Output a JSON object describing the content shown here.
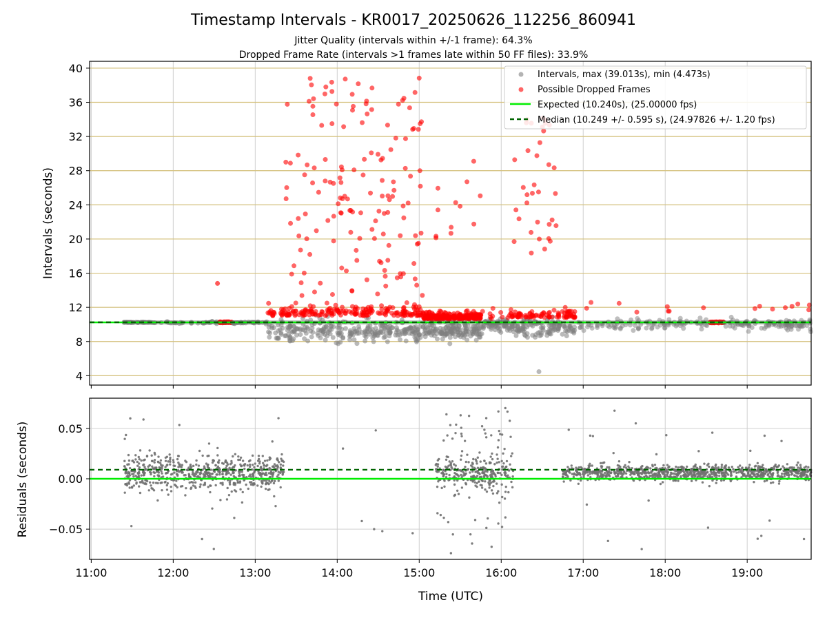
{
  "figure": {
    "title": "Timestamp Intervals - KR0017_20250626_112256_860941",
    "subtitle_1": "Jitter Quality (intervals within +/-1 frame): 64.3%",
    "subtitle_2": "Dropped Frame Rate (intervals >1 frames late within 50 FF files): 33.9%"
  },
  "chart_data": [
    {
      "type": "scatter",
      "panel": "top",
      "ylabel": "Intervals (seconds)",
      "xlabel": "",
      "x_unit": "hours UTC",
      "xlim": [
        10.98,
        19.78
      ],
      "ylim": [
        2.9,
        40.8
      ],
      "yticks": [
        4,
        8,
        12,
        16,
        20,
        24,
        28,
        32,
        36,
        40
      ],
      "ytick_labels": [
        "4",
        "8",
        "12",
        "16",
        "20",
        "24",
        "28",
        "32",
        "36",
        "40"
      ],
      "hlines": [
        4,
        8,
        12,
        16,
        20,
        24,
        28,
        32,
        36,
        40
      ],
      "hline_color": "#d4c07a",
      "grid": true,
      "legend_position": "top-right",
      "legend": [
        "Intervals, max (39.013s), min (4.473s)",
        "Possible Dropped Frames",
        "Expected (10.240s), (25.00000 fps)",
        "Median (10.249 +/- 0.595 s), (24.97826 +/- 1.20 fps)"
      ],
      "series": [
        {
          "role": "intervals",
          "color": "#808080",
          "max": 39.013,
          "min": 4.473
        },
        {
          "role": "dropped",
          "color": "#ff0000"
        },
        {
          "role": "expected",
          "value": 10.24,
          "color": "#00ee00",
          "style": "solid"
        },
        {
          "role": "median",
          "value": 10.249,
          "color": "#006400",
          "style": "dashed"
        }
      ],
      "clusters": [
        {
          "t0": 11.4,
          "t1": 11.8,
          "kind": "steady"
        },
        {
          "t0": 11.8,
          "t1": 12.55,
          "kind": "steady_light"
        },
        {
          "t0": 12.55,
          "t1": 12.72,
          "kind": "dropped_band"
        },
        {
          "t0": 12.72,
          "t1": 13.15,
          "kind": "steady_light"
        },
        {
          "t0": 13.15,
          "t1": 15.05,
          "kind": "burst"
        },
        {
          "t0": 15.05,
          "t1": 15.75,
          "kind": "dense_dropped"
        },
        {
          "t0": 15.75,
          "t1": 16.1,
          "kind": "mixed"
        },
        {
          "t0": 16.1,
          "t1": 16.9,
          "kind": "burst_small"
        },
        {
          "t0": 16.9,
          "t1": 18.55,
          "kind": "steady_mixed"
        },
        {
          "t0": 18.55,
          "t1": 18.72,
          "kind": "dropped_band"
        },
        {
          "t0": 18.72,
          "t1": 19.78,
          "kind": "steady_mixed"
        }
      ]
    },
    {
      "type": "scatter",
      "panel": "bottom",
      "ylabel": "Residuals (seconds)",
      "xlabel": "Time (UTC)",
      "xlim": [
        10.98,
        19.78
      ],
      "ylim": [
        -0.08,
        0.08
      ],
      "yticks": [
        -0.05,
        0.0,
        0.05
      ],
      "ytick_labels": [
        "−0.05",
        "0.00",
        "0.05"
      ],
      "xticks": [
        11,
        12,
        13,
        14,
        15,
        16,
        17,
        18,
        19
      ],
      "xtick_labels": [
        "11:00",
        "12:00",
        "13:00",
        "14:00",
        "15:00",
        "16:00",
        "17:00",
        "18:00",
        "19:00"
      ],
      "grid": true,
      "series": [
        {
          "role": "residuals",
          "color": "#707070"
        },
        {
          "role": "zero",
          "value": 0.0,
          "color": "#00ee00",
          "style": "solid"
        },
        {
          "role": "median_offset",
          "value": 0.009,
          "color": "#006400",
          "style": "dashed"
        }
      ],
      "clusters": [
        {
          "t0": 11.4,
          "t1": 13.35,
          "spread": 0.012
        },
        {
          "t0": 15.2,
          "t1": 16.15,
          "spread": 0.012
        },
        {
          "t0": 16.75,
          "t1": 19.78,
          "spread": 0.006
        }
      ]
    }
  ]
}
